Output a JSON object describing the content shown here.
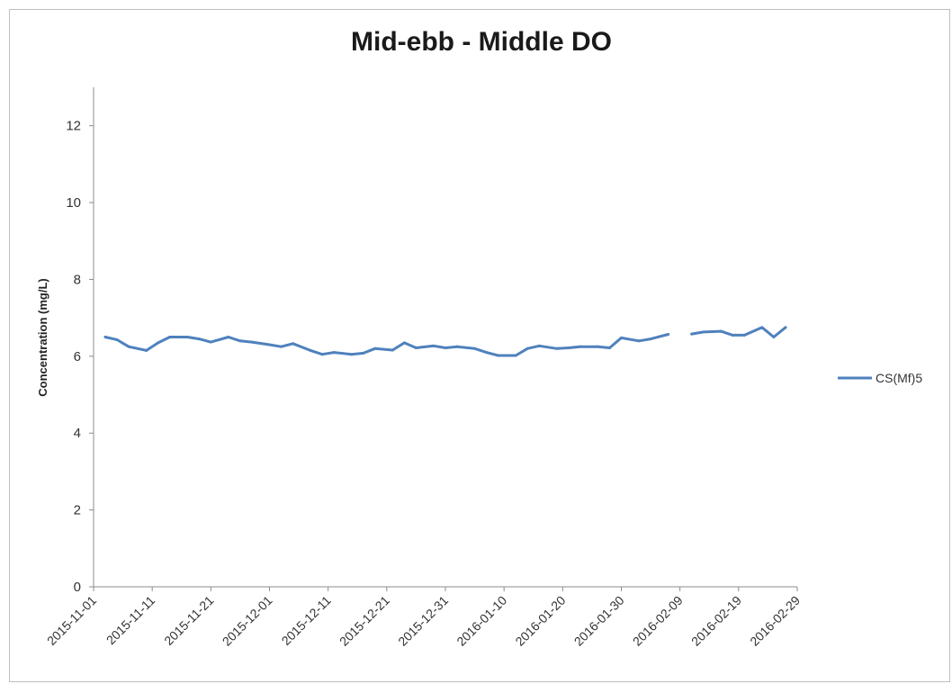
{
  "chart_data": {
    "type": "line",
    "title": "Mid-ebb - Middle DO",
    "ylabel": "Concentration (mg/L)",
    "xlabel": "",
    "ylim": [
      0,
      13
    ],
    "yticks": [
      0,
      2,
      4,
      6,
      8,
      10,
      12
    ],
    "xlim": [
      "2015-11-01",
      "2016-02-29"
    ],
    "xticks": [
      "2015-11-01",
      "2015-11-11",
      "2015-11-21",
      "2015-12-01",
      "2015-12-11",
      "2015-12-21",
      "2015-12-31",
      "2016-01-10",
      "2016-01-20",
      "2016-01-30",
      "2016-02-09",
      "2016-02-19",
      "2016-02-29"
    ],
    "grid": false,
    "legend_position": "right",
    "series": [
      {
        "name": "CS(Mf)5",
        "color": "#4f81bd",
        "points": [
          [
            "2015-11-03",
            6.5
          ],
          [
            "2015-11-05",
            6.43
          ],
          [
            "2015-11-07",
            6.25
          ],
          [
            "2015-11-10",
            6.15
          ],
          [
            "2015-11-12",
            6.35
          ],
          [
            "2015-11-14",
            6.5
          ],
          [
            "2015-11-17",
            6.5
          ],
          [
            "2015-11-19",
            6.45
          ],
          [
            "2015-11-21",
            6.37
          ],
          [
            "2015-11-24",
            6.5
          ],
          [
            "2015-11-26",
            6.4
          ],
          [
            "2015-11-28",
            6.37
          ],
          [
            "2015-12-01",
            6.3
          ],
          [
            "2015-12-03",
            6.25
          ],
          [
            "2015-12-05",
            6.33
          ],
          [
            "2015-12-08",
            6.15
          ],
          [
            "2015-12-10",
            6.05
          ],
          [
            "2015-12-12",
            6.1
          ],
          [
            "2015-12-15",
            6.05
          ],
          [
            "2015-12-17",
            6.08
          ],
          [
            "2015-12-19",
            6.2
          ],
          [
            "2015-12-22",
            6.16
          ],
          [
            "2015-12-24",
            6.35
          ],
          [
            "2015-12-26",
            6.22
          ],
          [
            "2015-12-29",
            6.27
          ],
          [
            "2015-12-31",
            6.22
          ],
          [
            "2016-01-02",
            6.25
          ],
          [
            "2016-01-05",
            6.2
          ],
          [
            "2016-01-07",
            6.1
          ],
          [
            "2016-01-09",
            6.02
          ],
          [
            "2016-01-12",
            6.02
          ],
          [
            "2016-01-14",
            6.2
          ],
          [
            "2016-01-16",
            6.27
          ],
          [
            "2016-01-19",
            6.2
          ],
          [
            "2016-01-21",
            6.22
          ],
          [
            "2016-01-23",
            6.25
          ],
          [
            "2016-01-26",
            6.25
          ],
          [
            "2016-01-28",
            6.22
          ],
          [
            "2016-01-30",
            6.48
          ],
          [
            "2016-02-02",
            6.4
          ],
          [
            "2016-02-04",
            6.45
          ],
          [
            "2016-02-07",
            6.57
          ],
          null,
          [
            "2016-02-11",
            6.58
          ],
          [
            "2016-02-13",
            6.63
          ],
          [
            "2016-02-16",
            6.65
          ],
          [
            "2016-02-18",
            6.55
          ],
          [
            "2016-02-20",
            6.55
          ],
          [
            "2016-02-23",
            6.75
          ],
          [
            "2016-02-25",
            6.5
          ],
          [
            "2016-02-27",
            6.75
          ]
        ]
      }
    ]
  }
}
